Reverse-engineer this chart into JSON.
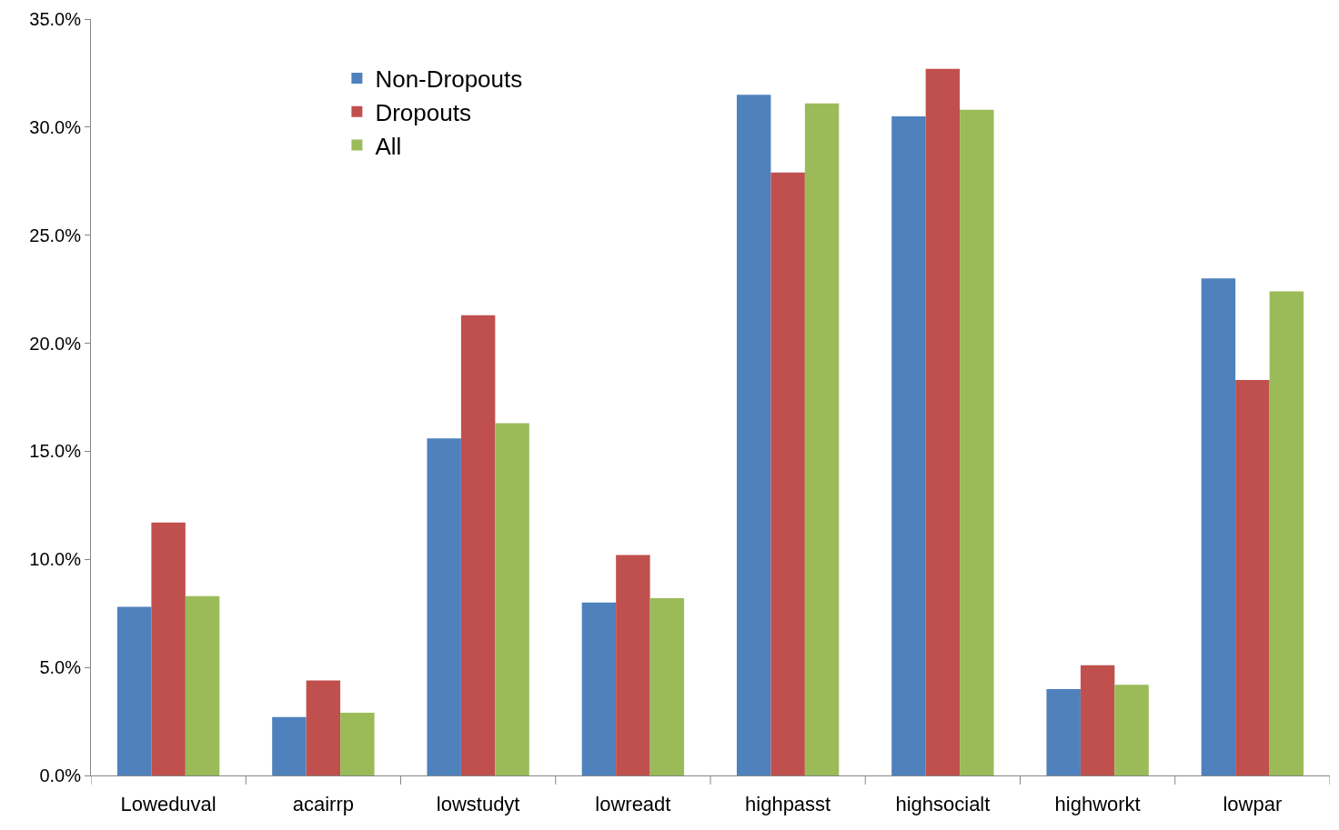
{
  "chart_data": {
    "type": "bar",
    "categories": [
      "Loweduval",
      "acairrp",
      "lowstudyt",
      "lowreadt",
      "highpasst",
      "highsocialt",
      "highworkt",
      "lowpar"
    ],
    "series": [
      {
        "name": "Non-Dropouts",
        "color": "#4f81bd",
        "values": [
          7.8,
          2.7,
          15.6,
          8.0,
          31.5,
          30.5,
          4.0,
          23.0
        ]
      },
      {
        "name": "Dropouts",
        "color": "#c0504d",
        "values": [
          11.7,
          4.4,
          21.3,
          10.2,
          27.9,
          32.7,
          5.1,
          18.3
        ]
      },
      {
        "name": "All",
        "color": "#9bbb59",
        "values": [
          8.3,
          2.9,
          16.3,
          8.2,
          31.1,
          30.8,
          4.2,
          22.4
        ]
      }
    ],
    "ylim": [
      0,
      35
    ],
    "yticks": [
      {
        "value": 0,
        "label": "0.0%"
      },
      {
        "value": 5,
        "label": "5.0%"
      },
      {
        "value": 10,
        "label": "10.0%"
      },
      {
        "value": 15,
        "label": "15.0%"
      },
      {
        "value": 20,
        "label": "20.0%"
      },
      {
        "value": 25,
        "label": "25.0%"
      },
      {
        "value": 30,
        "label": "30.0%"
      },
      {
        "value": 35,
        "label": "35.0%"
      }
    ],
    "legend": "top left"
  }
}
